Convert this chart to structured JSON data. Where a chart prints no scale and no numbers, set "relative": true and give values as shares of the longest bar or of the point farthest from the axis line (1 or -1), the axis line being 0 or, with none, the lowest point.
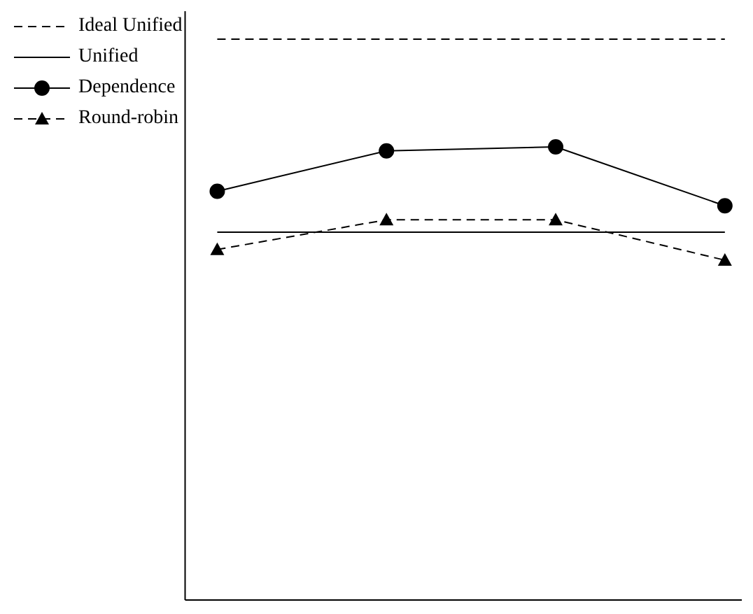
{
  "chart_data": {
    "type": "line",
    "relative": true,
    "categories": [
      null,
      null,
      null,
      null
    ],
    "legend": "top left",
    "series": [
      {
        "name": "Ideal Unified",
        "color": "#000000",
        "line_style": "dashed",
        "marker": "none",
        "values": [
          1,
          1,
          1,
          1
        ]
      },
      {
        "name": "Unified",
        "color": "#000000",
        "line_style": "solid",
        "marker": "none",
        "values": [
          0.656,
          0.656,
          0.656,
          0.656
        ]
      },
      {
        "name": "Dependence",
        "color": "#000000",
        "line_style": "solid",
        "marker": "circle",
        "values": [
          0.729,
          0.801,
          0.808,
          0.703
        ]
      },
      {
        "name": "Round-robin",
        "color": "#000000",
        "line_style": "dashed",
        "marker": "triangle",
        "values": [
          0.625,
          0.678,
          0.678,
          0.606
        ]
      }
    ]
  }
}
